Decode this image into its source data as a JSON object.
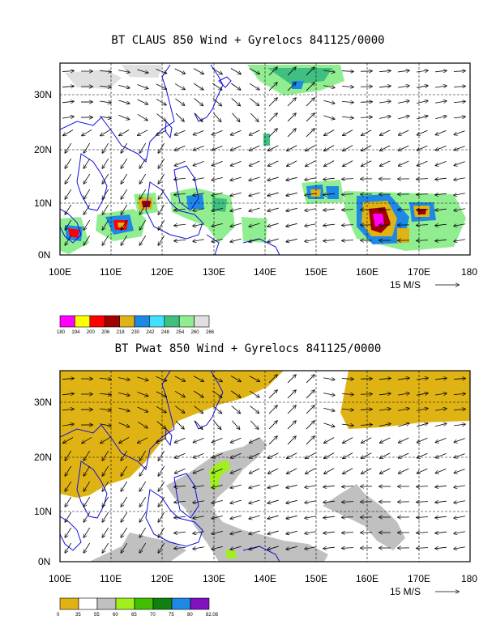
{
  "colors": {
    "coast": "#1010e0",
    "grid": "#000000",
    "arrow": "#000000",
    "pwat_dry": "#e0b314",
    "pwat_grey": "#c0c0c0",
    "pwat_green": "#a0f020"
  },
  "panels": [
    {
      "title": "BT CLAUS 850 Wind + Gyrelocs 841125/0000",
      "x_ticks": [
        "100E",
        "110E",
        "120E",
        "130E",
        "140E",
        "150E",
        "160E",
        "170E",
        "180"
      ],
      "y_ticks": [
        "30N",
        "20N",
        "10N",
        "0N"
      ],
      "scale_label": "15 M/S",
      "legend": {
        "labels": [
          "180",
          "194",
          "200",
          "206",
          "218",
          "230",
          "242",
          "248",
          "254",
          "260",
          "266"
        ],
        "colors": [
          "#ff00ff",
          "#ffff00",
          "#ff0000",
          "#a00000",
          "#e0b314",
          "#1e88e5",
          "#40e0ff",
          "#40c080",
          "#90ee90",
          "#e0e0e0"
        ]
      }
    },
    {
      "title": "BT Pwat 850 Wind + Gyrelocs 841125/0000",
      "x_ticks": [
        "100E",
        "110E",
        "120E",
        "130E",
        "140E",
        "150E",
        "160E",
        "170E",
        "180"
      ],
      "y_ticks": [
        "30N",
        "20N",
        "10N",
        "0N"
      ],
      "scale_label": "15 M/S",
      "legend": {
        "labels": [
          "0",
          "35",
          "55",
          "60",
          "65",
          "70",
          "75",
          "80",
          "82.08"
        ],
        "colors": [
          "#e0b314",
          "#ffffff",
          "#c0c0c0",
          "#a0f020",
          "#40c000",
          "#108010",
          "#1e88e5",
          "#8010c0"
        ]
      }
    }
  ]
}
